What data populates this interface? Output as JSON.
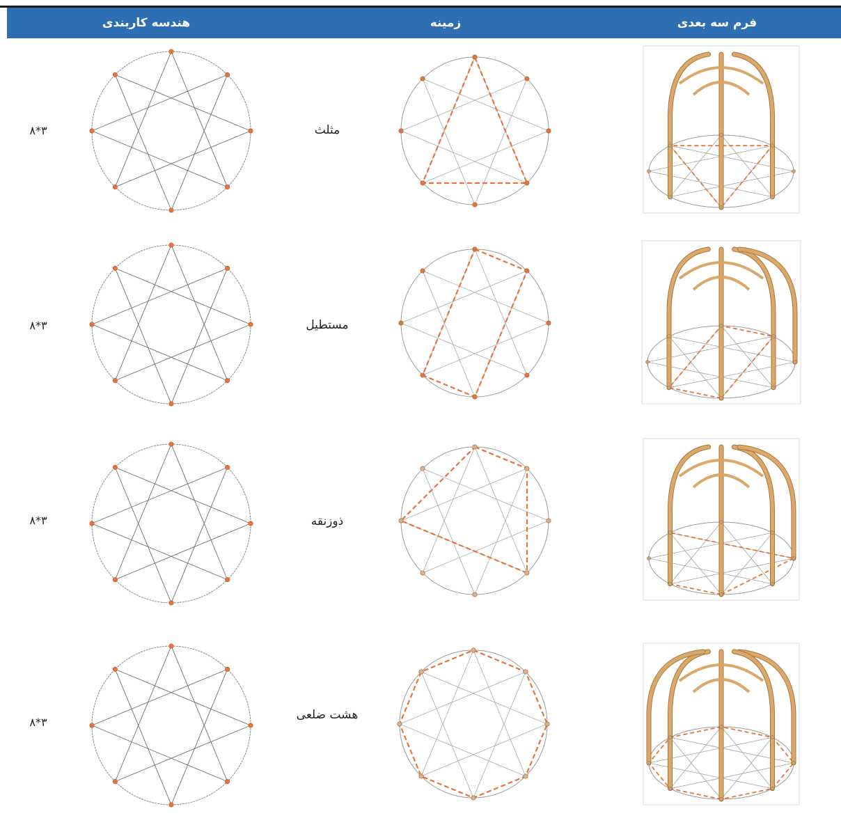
{
  "header": {
    "col_geometry": "هندسه کاربندی",
    "col_base": "زمینه",
    "col_form": "فرم سه بعدی"
  },
  "rows": [
    {
      "code": "۸*۳",
      "base": "مثلث",
      "base_shape": "triangle"
    },
    {
      "code": "۸*۳",
      "base": "مستطیل",
      "base_shape": "rectangle"
    },
    {
      "code": "۸*۳",
      "base": "ذوزنقه",
      "base_shape": "trapezoid"
    },
    {
      "code": "۸*۳",
      "base": "هشت ضلعی",
      "base_shape": "octagon"
    }
  ],
  "colors": {
    "header_bg": "#2e6fb3",
    "accent_orange": "#e8743b",
    "wood": "#d9a86a",
    "line_gray": "#9a9a9a"
  }
}
